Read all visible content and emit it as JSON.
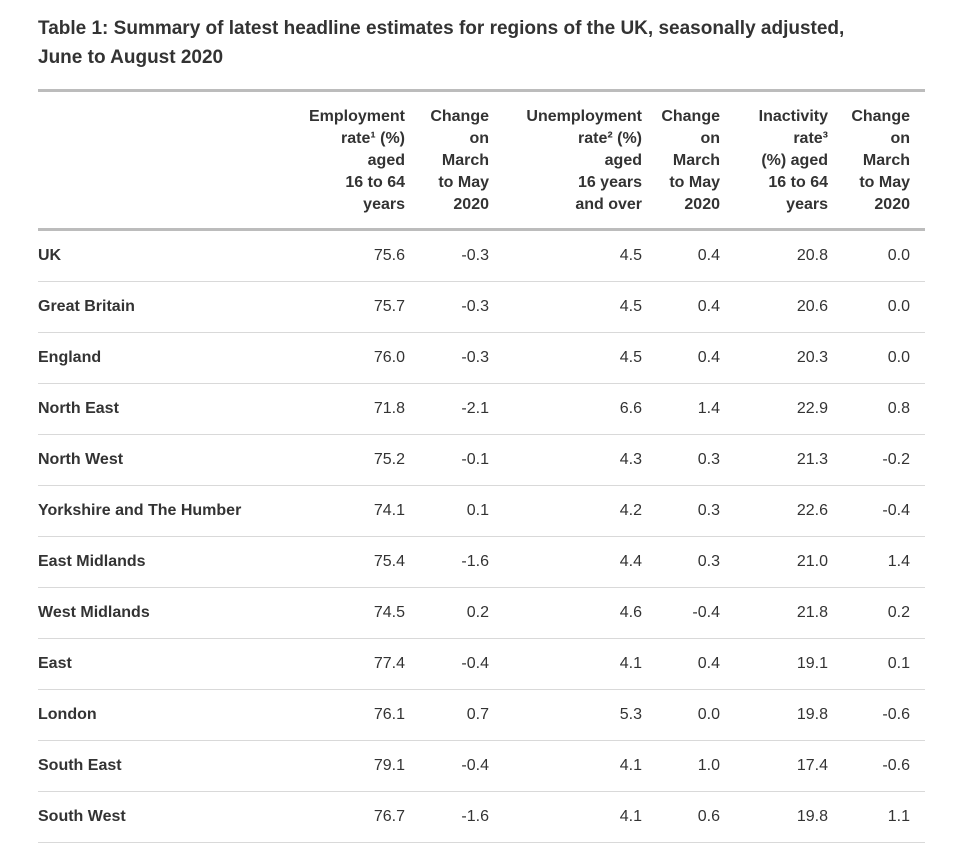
{
  "title": "Table 1: Summary of latest headline estimates for regions of the UK, seasonally adjusted, June to August 2020",
  "table": {
    "region_header": "",
    "headers": [
      {
        "label": "Employment\nrate¹ (%)\naged\n16 to 64\nyears"
      },
      {
        "label": "Change\non\nMarch\nto May\n2020"
      },
      {
        "label": "Unemployment\nrate² (%)\naged\n16 years\nand over"
      },
      {
        "label": "Change\non\nMarch\nto May\n2020"
      },
      {
        "label": "Inactivity\nrate³\n(%) aged\n16 to 64\nyears"
      },
      {
        "label": "Change\non\nMarch\nto May\n2020"
      }
    ],
    "rows": [
      {
        "region": "UK",
        "values": [
          "75.6",
          "-0.3",
          "4.5",
          "0.4",
          "20.8",
          "0.0"
        ]
      },
      {
        "region": "Great Britain",
        "values": [
          "75.7",
          "-0.3",
          "4.5",
          "0.4",
          "20.6",
          "0.0"
        ]
      },
      {
        "region": "England",
        "values": [
          "76.0",
          "-0.3",
          "4.5",
          "0.4",
          "20.3",
          "0.0"
        ]
      },
      {
        "region": "North East",
        "values": [
          "71.8",
          "-2.1",
          "6.6",
          "1.4",
          "22.9",
          "0.8"
        ]
      },
      {
        "region": "North West",
        "values": [
          "75.2",
          "-0.1",
          "4.3",
          "0.3",
          "21.3",
          "-0.2"
        ]
      },
      {
        "region": "Yorkshire and The Humber",
        "values": [
          "74.1",
          "0.1",
          "4.2",
          "0.3",
          "22.6",
          "-0.4"
        ]
      },
      {
        "region": "East Midlands",
        "values": [
          "75.4",
          "-1.6",
          "4.4",
          "0.3",
          "21.0",
          "1.4"
        ]
      },
      {
        "region": "West Midlands",
        "values": [
          "74.5",
          "0.2",
          "4.6",
          "-0.4",
          "21.8",
          "0.2"
        ]
      },
      {
        "region": "East",
        "values": [
          "77.4",
          "-0.4",
          "4.1",
          "0.4",
          "19.1",
          "0.1"
        ]
      },
      {
        "region": "London",
        "values": [
          "76.1",
          "0.7",
          "5.3",
          "0.0",
          "19.8",
          "-0.6"
        ]
      },
      {
        "region": "South East",
        "values": [
          "79.1",
          "-0.4",
          "4.1",
          "1.0",
          "17.4",
          "-0.6"
        ]
      },
      {
        "region": "South West",
        "values": [
          "76.7",
          "-1.6",
          "4.1",
          "0.6",
          "19.8",
          "1.1"
        ]
      }
    ]
  },
  "colors": {
    "text": "#333333",
    "rule_heavy": "#bcbcbc",
    "rule_light": "#d9d9d9",
    "background": "#ffffff"
  }
}
